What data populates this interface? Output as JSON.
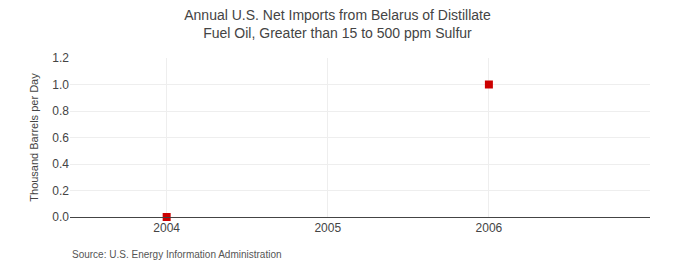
{
  "chart_data": {
    "type": "scatter",
    "title": "Annual U.S. Net Imports from Belarus of Distillate Fuel Oil, Greater than 15 to 500 ppm Sulfur",
    "ylabel": "Thousand Barrels per Day",
    "source": "Source: U.S. Energy Information Administration",
    "x": [
      2004,
      2006
    ],
    "values": [
      0.0,
      1.0
    ],
    "color": "#cc0000",
    "marker": "square",
    "xlim": [
      2003.4,
      2007.0
    ],
    "xticks": [
      2004,
      2005,
      2006
    ],
    "ylim": [
      0.0,
      1.2
    ],
    "yticks": [
      {
        "value": 0.0,
        "label": "0.0"
      },
      0.2,
      0.4,
      0.6,
      0.8,
      {
        "value": 1.0,
        "label": "1.0"
      },
      1.2
    ],
    "grid": true
  }
}
